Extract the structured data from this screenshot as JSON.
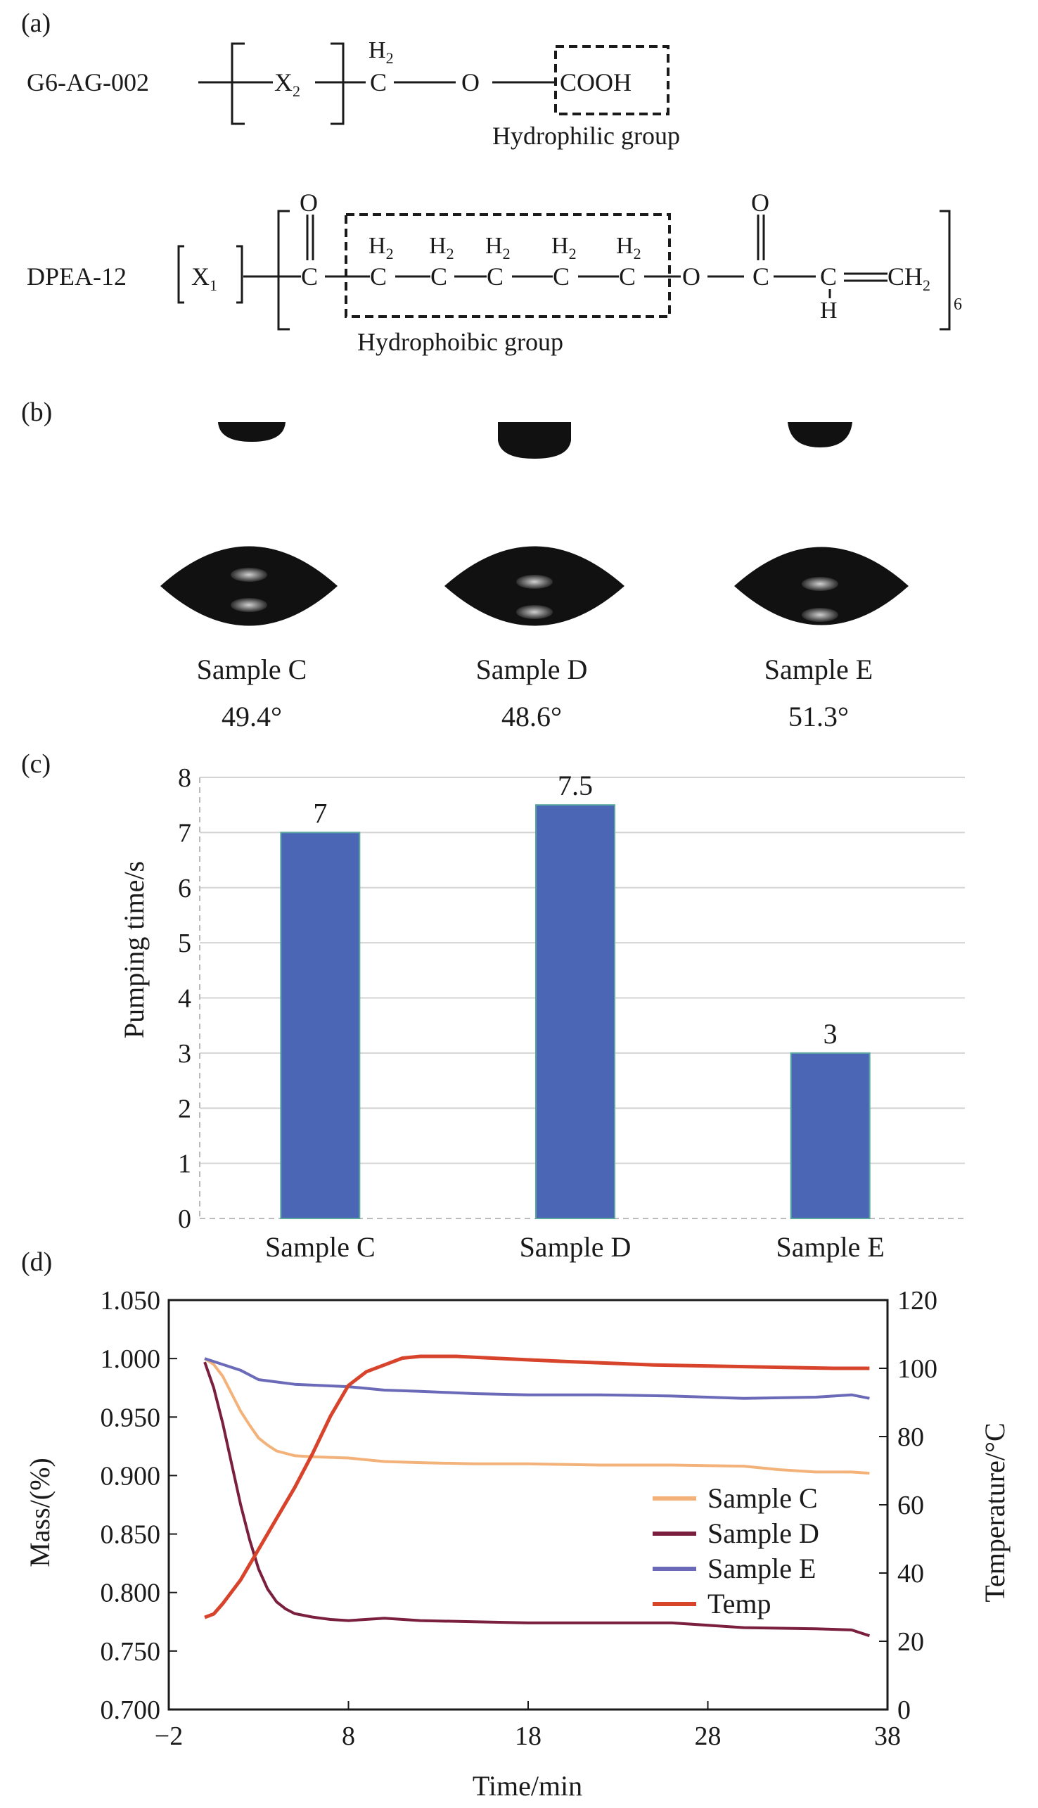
{
  "panel_a": {
    "label": "(a)",
    "g6": {
      "name": "G6-AG-002",
      "x_sub_base": "X",
      "x_sub": "2",
      "h2": "H",
      "h2_sub": "2",
      "c": "C",
      "o": "O",
      "cooh": "COOH",
      "group_label": "Hydrophilic group",
      "box_color": "#d6336c"
    },
    "dpea": {
      "name": "DPEA-12",
      "x_sub_base": "X",
      "x_sub": "1",
      "o_top": "O",
      "c": "C",
      "h2": "H",
      "h2_sub": "2",
      "o": "O",
      "h_bottom": "H",
      "ch2": "CH",
      "ch2_sub": "2",
      "repeat": "6",
      "group_label": "Hydrophoibic group",
      "box_color": "#3b3b9c"
    }
  },
  "panel_b": {
    "label": "(b)",
    "samples": [
      {
        "name": "Sample C",
        "angle": "49.4°"
      },
      {
        "name": "Sample D",
        "angle": "48.6°"
      },
      {
        "name": "Sample E",
        "angle": "51.3°"
      }
    ]
  },
  "panel_c": {
    "label": "(c)",
    "chart_data": {
      "type": "bar",
      "categories": [
        "Sample C",
        "Sample D",
        "Sample E"
      ],
      "values": [
        7,
        7.5,
        3
      ],
      "data_labels": [
        "7",
        "7.5",
        "3"
      ],
      "ylabel": "Pumping time/s",
      "ylim": [
        0,
        8
      ],
      "yticks": [
        "0",
        "1",
        "2",
        "3",
        "4",
        "5",
        "6",
        "7",
        "8"
      ],
      "grid": true,
      "bar_color": "#4a66b5"
    }
  },
  "panel_d": {
    "label": "(d)",
    "chart_data": {
      "type": "line",
      "xlabel": "Time/min",
      "ylabel": "Mass/(%)",
      "y2label": "Temperature/°C",
      "xlim": [
        -2,
        38
      ],
      "ylim": [
        0.7,
        1.05
      ],
      "y2lim": [
        0,
        120
      ],
      "xticks": [
        "−2",
        "8",
        "18",
        "28",
        "38"
      ],
      "yticks": [
        "0.700",
        "0.750",
        "0.800",
        "0.850",
        "0.900",
        "0.950",
        "1.000",
        "1.050"
      ],
      "y2ticks": [
        "0",
        "20",
        "40",
        "60",
        "80",
        "100",
        "120"
      ],
      "legend_position": "right-middle",
      "series": [
        {
          "name": "Sample C",
          "color": "#f2b27a",
          "axis": "left",
          "x": [
            0,
            0.5,
            1,
            1.5,
            2,
            2.5,
            3,
            3.5,
            4,
            5,
            6,
            8,
            10,
            12,
            15,
            18,
            22,
            26,
            30,
            32,
            34,
            36,
            37
          ],
          "y": [
            1.0,
            0.995,
            0.985,
            0.97,
            0.955,
            0.943,
            0.932,
            0.926,
            0.921,
            0.917,
            0.916,
            0.915,
            0.912,
            0.911,
            0.91,
            0.91,
            0.909,
            0.909,
            0.908,
            0.905,
            0.903,
            0.903,
            0.902
          ]
        },
        {
          "name": "Sample D",
          "color": "#7a1f3d",
          "axis": "left",
          "x": [
            0,
            0.5,
            1,
            1.5,
            2,
            2.5,
            3,
            3.5,
            4,
            4.5,
            5,
            6,
            7,
            8,
            10,
            12,
            15,
            18,
            22,
            26,
            30,
            34,
            36,
            37
          ],
          "y": [
            0.997,
            0.975,
            0.945,
            0.91,
            0.875,
            0.845,
            0.82,
            0.803,
            0.792,
            0.786,
            0.782,
            0.779,
            0.777,
            0.776,
            0.778,
            0.776,
            0.775,
            0.774,
            0.774,
            0.774,
            0.77,
            0.769,
            0.768,
            0.763
          ]
        },
        {
          "name": "Sample E",
          "color": "#6a6ab8",
          "axis": "left",
          "x": [
            0,
            1,
            2,
            3,
            5,
            8,
            10,
            12,
            15,
            18,
            22,
            26,
            30,
            34,
            36,
            37
          ],
          "y": [
            1.0,
            0.995,
            0.99,
            0.982,
            0.978,
            0.976,
            0.973,
            0.972,
            0.97,
            0.969,
            0.969,
            0.968,
            0.966,
            0.967,
            0.969,
            0.966
          ]
        },
        {
          "name": "Temp",
          "color": "#d8432c",
          "axis": "right",
          "x": [
            0,
            0.5,
            1,
            2,
            3,
            4,
            5,
            6,
            7,
            8,
            9,
            10,
            11,
            12,
            14,
            16,
            20,
            25,
            30,
            35,
            37
          ],
          "y": [
            27,
            28,
            31,
            38,
            47,
            56,
            65,
            75,
            86,
            95,
            99,
            101,
            103,
            103.5,
            103.5,
            103,
            102,
            101,
            100.5,
            100,
            100
          ]
        }
      ]
    }
  }
}
